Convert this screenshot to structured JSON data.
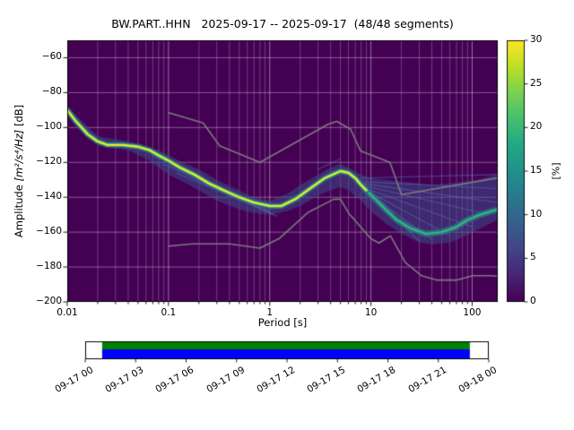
{
  "title": "BW.PART..HHN   2025-09-17 -- 2025-09-17  (48/48 segments)",
  "axes": {
    "x": {
      "label": "Period [s]",
      "scale": "log",
      "ticks": [
        {
          "v": 0.01,
          "label": "0.01"
        },
        {
          "v": 0.1,
          "label": "0.1"
        },
        {
          "v": 1,
          "label": "1"
        },
        {
          "v": 10,
          "label": "10"
        },
        {
          "v": 100,
          "label": "100"
        }
      ]
    },
    "y": {
      "label": "Amplitude [m²/s⁴/Hz] [dB]",
      "label_parts": {
        "prefix": "Amplitude ",
        "math": "[m²/s⁴/Hz]",
        "suffix": " [dB]"
      },
      "ticks": [
        {
          "v": -60,
          "label": "−60"
        },
        {
          "v": -80,
          "label": "−80"
        },
        {
          "v": -100,
          "label": "−100"
        },
        {
          "v": -120,
          "label": "−120"
        },
        {
          "v": -140,
          "label": "−140"
        },
        {
          "v": -160,
          "label": "−160"
        },
        {
          "v": -180,
          "label": "−180"
        },
        {
          "v": -200,
          "label": "−200"
        }
      ]
    }
  },
  "colorbar": {
    "label": "[%]",
    "min": 0,
    "max": 30,
    "ticks": [
      {
        "v": 0,
        "label": "0"
      },
      {
        "v": 5,
        "label": "5"
      },
      {
        "v": 10,
        "label": "10"
      },
      {
        "v": 15,
        "label": "15"
      },
      {
        "v": 20,
        "label": "20"
      },
      {
        "v": 25,
        "label": "25"
      },
      {
        "v": 30,
        "label": "30"
      }
    ],
    "colormap": "viridis",
    "viridis_stops": [
      [
        0.0,
        "#440154"
      ],
      [
        0.1,
        "#482475"
      ],
      [
        0.2,
        "#414487"
      ],
      [
        0.3,
        "#355f8d"
      ],
      [
        0.4,
        "#2a788e"
      ],
      [
        0.5,
        "#21918c"
      ],
      [
        0.6,
        "#22a884"
      ],
      [
        0.7,
        "#44bf70"
      ],
      [
        0.8,
        "#7ad151"
      ],
      [
        0.9,
        "#bddf26"
      ],
      [
        1.0,
        "#fde725"
      ]
    ]
  },
  "chart_data": {
    "type": "heatmap",
    "title": "BW.PART..HHN 2025-09-17 -- 2025-09-17 (48/48 segments)",
    "xlabel": "Period [s]",
    "ylabel": "Amplitude [m²/s⁴/Hz] [dB]",
    "xscale": "log",
    "xlim": [
      0.01,
      179
    ],
    "ylim": [
      -200,
      -50
    ],
    "grid": true,
    "colorbar_label": "[%]",
    "prob_range": [
      0,
      30
    ],
    "background_color": "#440154",
    "mode_ridge": {
      "name": "psd-mode-highest-probability",
      "color": "#fde725",
      "points": [
        [
          0.01,
          -90
        ],
        [
          0.012,
          -96
        ],
        [
          0.016,
          -104
        ],
        [
          0.02,
          -108
        ],
        [
          0.025,
          -110
        ],
        [
          0.035,
          -110
        ],
        [
          0.05,
          -111
        ],
        [
          0.065,
          -113
        ],
        [
          0.08,
          -116
        ],
        [
          0.1,
          -119
        ],
        [
          0.13,
          -123
        ],
        [
          0.18,
          -127
        ],
        [
          0.25,
          -132
        ],
        [
          0.35,
          -136
        ],
        [
          0.5,
          -140
        ],
        [
          0.7,
          -143
        ],
        [
          1,
          -145
        ],
        [
          1.3,
          -145
        ],
        [
          1.8,
          -141
        ],
        [
          2.5,
          -135
        ],
        [
          3.5,
          -129
        ],
        [
          5,
          -125
        ],
        [
          6,
          -126
        ],
        [
          7,
          -129
        ],
        [
          8,
          -133
        ],
        [
          9,
          -136
        ]
      ]
    },
    "mode_ridge_long": {
      "name": "psd-mode-long-period",
      "color": "#35b779",
      "points": [
        [
          9,
          -136
        ],
        [
          11,
          -141
        ],
        [
          14,
          -147
        ],
        [
          18,
          -153
        ],
        [
          25,
          -158
        ],
        [
          35,
          -161
        ],
        [
          50,
          -160
        ],
        [
          70,
          -157
        ],
        [
          90,
          -153
        ],
        [
          120,
          -150
        ],
        [
          155,
          -148
        ],
        [
          179,
          -147
        ]
      ]
    },
    "spread_band": {
      "name": "psd-probability-spread",
      "color": "#3b528b",
      "points": [
        [
          0.01,
          -92,
          -88
        ],
        [
          0.02,
          -110,
          -105
        ],
        [
          0.04,
          -113,
          -108
        ],
        [
          0.06,
          -118,
          -111
        ],
        [
          0.08,
          -123,
          -113
        ],
        [
          0.1,
          -127,
          -116
        ],
        [
          0.15,
          -132,
          -121
        ],
        [
          0.2,
          -136,
          -124
        ],
        [
          0.3,
          -142,
          -130
        ],
        [
          0.5,
          -147,
          -136
        ],
        [
          0.7,
          -149,
          -140
        ],
        [
          1,
          -150,
          -142
        ],
        [
          1.5,
          -148,
          -138
        ],
        [
          2,
          -145,
          -133
        ],
        [
          3,
          -139,
          -127
        ],
        [
          4,
          -136,
          -123
        ],
        [
          5,
          -134,
          -121
        ],
        [
          6,
          -136,
          -123
        ],
        [
          8,
          -142,
          -127
        ],
        [
          10,
          -148,
          -129
        ],
        [
          14,
          -155,
          -130
        ],
        [
          20,
          -161,
          -131
        ],
        [
          30,
          -166,
          -132
        ],
        [
          40,
          -167,
          -133
        ],
        [
          60,
          -166,
          -132
        ],
        [
          80,
          -163,
          -131
        ],
        [
          110,
          -159,
          -130
        ],
        [
          150,
          -155,
          -128
        ],
        [
          179,
          -153,
          -127
        ]
      ]
    },
    "fan_lines": [
      [
        8,
        -129,
        179,
        -127
      ],
      [
        8,
        -131,
        179,
        -135
      ],
      [
        8,
        -132,
        179,
        -143
      ],
      [
        8,
        -133,
        150,
        -150
      ],
      [
        8,
        -134,
        100,
        -157
      ],
      [
        9,
        -136,
        60,
        -162
      ],
      [
        9,
        -137,
        40,
        -164
      ],
      [
        10,
        -139,
        30,
        -165
      ],
      [
        0.07,
        -116,
        1,
        -148
      ],
      [
        0.09,
        -121,
        1.1,
        -150
      ],
      [
        0.12,
        -126,
        1.2,
        -151
      ],
      [
        3,
        -124,
        5,
        -118
      ]
    ],
    "noise_models": [
      {
        "name": "NHNM",
        "color": "#808080",
        "points": [
          [
            0.1,
            -91.5
          ],
          [
            0.22,
            -97.4
          ],
          [
            0.32,
            -110.5
          ],
          [
            0.8,
            -120
          ],
          [
            3.8,
            -98
          ],
          [
            4.6,
            -96.5
          ],
          [
            6.3,
            -101
          ],
          [
            7.9,
            -113.5
          ],
          [
            15.4,
            -120
          ],
          [
            20,
            -138.5
          ],
          [
            179,
            -128.9
          ]
        ]
      },
      {
        "name": "NLNM",
        "color": "#808080",
        "points": [
          [
            0.1,
            -168
          ],
          [
            0.17,
            -166.7
          ],
          [
            0.4,
            -166.7
          ],
          [
            0.8,
            -169.2
          ],
          [
            1.24,
            -163.7
          ],
          [
            2.4,
            -148.6
          ],
          [
            4.3,
            -141.1
          ],
          [
            5,
            -141.1
          ],
          [
            6,
            -149
          ],
          [
            10,
            -163.8
          ],
          [
            12,
            -166.2
          ],
          [
            15.6,
            -162.1
          ],
          [
            21.9,
            -177.5
          ],
          [
            31.6,
            -185
          ],
          [
            45,
            -187.5
          ],
          [
            70,
            -187.5
          ],
          [
            101,
            -185
          ],
          [
            154,
            -185
          ],
          [
            179,
            -185.4
          ]
        ]
      }
    ]
  },
  "timeline": {
    "tick_labels": [
      "09-17 00",
      "09-17 03",
      "09-17 06",
      "09-17 09",
      "09-17 12",
      "09-17 15",
      "09-17 18",
      "09-17 21",
      "09-18 00"
    ],
    "bar_colors": {
      "top": "#008000",
      "bottom": "#0000ff"
    },
    "coverage": {
      "start_frac": 0.042,
      "end_frac": 0.953
    }
  }
}
